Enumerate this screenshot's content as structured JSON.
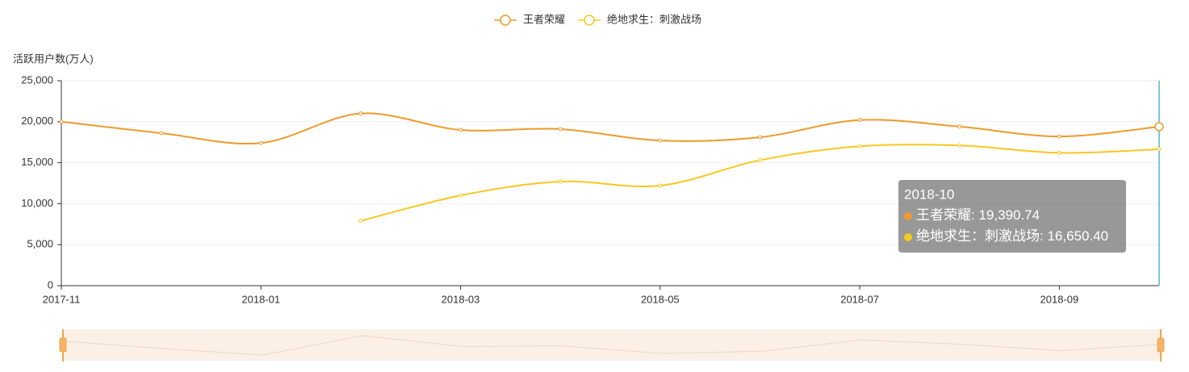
{
  "chart_data": {
    "type": "line",
    "y_axis_label": "活跃用户数(万人)",
    "categories": [
      "2017-11",
      null,
      "2018-01",
      null,
      "2018-03",
      null,
      "2018-05",
      null,
      "2018-07",
      null,
      "2018-09",
      null
    ],
    "series": [
      {
        "name": "王者荣耀",
        "color": "#ee9a2b",
        "values": [
          20000,
          18600,
          17400,
          21000,
          19000,
          19100,
          17700,
          18100,
          20200,
          19400,
          18200,
          19390.74
        ]
      },
      {
        "name": "绝地求生：刺激战场",
        "color": "#f7c81e",
        "values": [
          null,
          null,
          null,
          7900,
          11000,
          12700,
          12200,
          15300,
          17000,
          17100,
          16200,
          16650.4
        ]
      }
    ],
    "ylim": [
      0,
      25000
    ],
    "yticks": [
      0,
      {
        "value": 5000,
        "label": "5,000"
      },
      {
        "value": 10000,
        "label": "10,000"
      },
      {
        "value": 15000,
        "label": "15,000"
      },
      {
        "value": 20000,
        "label": "20,000"
      },
      {
        "value": 25000,
        "label": "25,000"
      }
    ],
    "grid": true,
    "legend": "top",
    "tooltip": {
      "title": "2018-10",
      "index": 11,
      "value_labels": [
        "19,390.74",
        "16,650.40"
      ]
    }
  }
}
